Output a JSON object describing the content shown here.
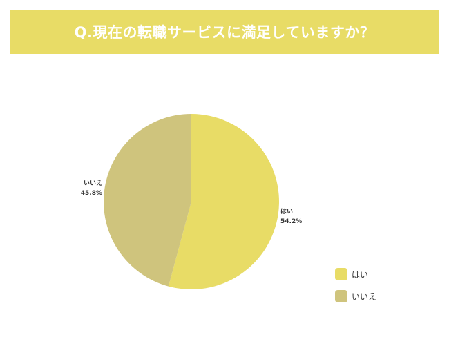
{
  "title": "Q.現在の転職サービスに満足していますか？",
  "colors": {
    "banner": "#e8dc66",
    "yes": "#e8dc66",
    "no": "#cfc47d"
  },
  "chart_data": {
    "type": "pie",
    "title": "Q.現在の転職サービスに満足していますか？",
    "legend_position": "bottom-right",
    "slices": [
      {
        "label": "はい",
        "value": 54.2,
        "display": "54.2%",
        "color": "#e8dc66"
      },
      {
        "label": "いいえ",
        "value": 45.8,
        "display": "45.8%",
        "color": "#cfc47d"
      }
    ]
  },
  "legend": [
    {
      "label": "はい",
      "color": "#e8dc66"
    },
    {
      "label": "いいえ",
      "color": "#cfc47d"
    }
  ]
}
